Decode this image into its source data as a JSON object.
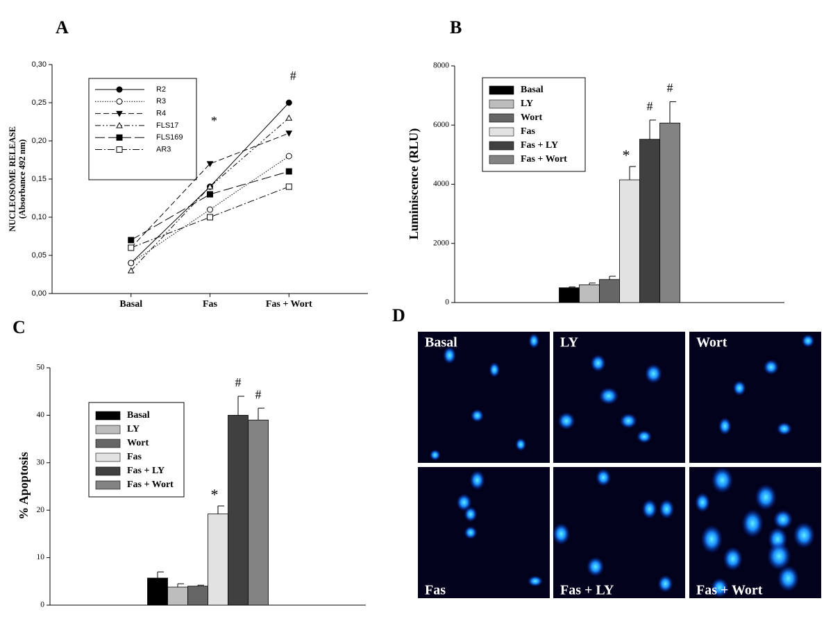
{
  "chart_data": [
    {
      "type": "line",
      "panel": "A",
      "ylabel": [
        "NUCLEOSOME RELEASE",
        "(Absorbance 492 nm)"
      ],
      "categories": [
        "Basal",
        "Fas",
        "Fas + Wort"
      ],
      "annotations": [
        null,
        "*",
        "#"
      ],
      "ylim": [
        0,
        0.3
      ],
      "yticks": [
        {
          "value": 0,
          "label": "0,00"
        },
        {
          "value": 0.05,
          "label": "0,05"
        },
        {
          "value": 0.1,
          "label": "0,10"
        },
        {
          "value": 0.15,
          "label": "0,15"
        },
        {
          "value": 0.2,
          "label": "0,20"
        },
        {
          "value": 0.25,
          "label": "0,25"
        },
        {
          "value": 0.3,
          "label": "0,30"
        }
      ],
      "series": [
        {
          "name": "R2",
          "color": "#000000",
          "dash": "solid",
          "marker": "circle",
          "filled": true,
          "values": [
            0.04,
            0.14,
            0.25
          ]
        },
        {
          "name": "R3",
          "color": "#000000",
          "dash": "dotted",
          "marker": "circle",
          "filled": false,
          "values": [
            0.04,
            0.11,
            0.18
          ]
        },
        {
          "name": "R4",
          "color": "#000000",
          "dash": "dashed",
          "marker": "triangle-down",
          "filled": true,
          "values": [
            0.06,
            0.17,
            0.21
          ]
        },
        {
          "name": "FLS17",
          "color": "#000000",
          "dash": "dash-dot-dot",
          "marker": "triangle-up",
          "filled": false,
          "values": [
            0.03,
            0.14,
            0.23
          ]
        },
        {
          "name": "FLS169",
          "color": "#000000",
          "dash": "long-dash",
          "marker": "square",
          "filled": true,
          "values": [
            0.07,
            0.13,
            0.16
          ]
        },
        {
          "name": "AR3",
          "color": "#000000",
          "dash": "dash-dot",
          "marker": "square",
          "filled": false,
          "values": [
            0.06,
            0.1,
            0.14
          ]
        }
      ]
    },
    {
      "type": "bar",
      "panel": "B",
      "ylabel": "Luminiscence (RLU)",
      "categories": [
        null
      ],
      "ylim": [
        0,
        8000
      ],
      "yticks": [
        0,
        2000,
        4000,
        6000,
        8000
      ],
      "series": [
        {
          "name": "Basal",
          "color": "#000000",
          "values": [
            500
          ],
          "errors": [
            30
          ]
        },
        {
          "name": "LY",
          "color": "#bdbdbd",
          "values": [
            600
          ],
          "errors": [
            60
          ]
        },
        {
          "name": "Wort",
          "color": "#666666",
          "values": [
            780
          ],
          "errors": [
            110
          ]
        },
        {
          "name": "Fas",
          "color": "#e2e2e2",
          "values": [
            4150
          ],
          "errors": [
            450
          ],
          "annotation": "*"
        },
        {
          "name": "Fas + LY",
          "color": "#404040",
          "values": [
            5520
          ],
          "errors": [
            650
          ],
          "annotation": "#"
        },
        {
          "name": "Fas + Wort",
          "color": "#838383",
          "values": [
            6070
          ],
          "errors": [
            720
          ],
          "annotation": "#"
        }
      ]
    },
    {
      "type": "bar",
      "panel": "C",
      "ylabel": "% Apoptosis",
      "categories": [
        null
      ],
      "ylim": [
        0,
        50
      ],
      "yticks": [
        0,
        10,
        20,
        30,
        40,
        50
      ],
      "series": [
        {
          "name": "Basal",
          "color": "#000000",
          "values": [
            5.7
          ],
          "errors": [
            1.3
          ]
        },
        {
          "name": "LY",
          "color": "#bdbdbd",
          "values": [
            3.8
          ],
          "errors": [
            0.7
          ]
        },
        {
          "name": "Wort",
          "color": "#666666",
          "values": [
            4.0
          ],
          "errors": [
            0.2
          ]
        },
        {
          "name": "Fas",
          "color": "#e2e2e2",
          "values": [
            19.2
          ],
          "errors": [
            1.7
          ],
          "annotation": "*"
        },
        {
          "name": "Fas + LY",
          "color": "#404040",
          "values": [
            40
          ],
          "errors": [
            4
          ],
          "annotation": "#"
        },
        {
          "name": "Fas + Wort",
          "color": "#838383",
          "values": [
            39
          ],
          "errors": [
            2.5
          ],
          "annotation": "#"
        }
      ]
    }
  ],
  "panel_d": {
    "panel": "D",
    "images": [
      {
        "label": "Basal"
      },
      {
        "label": "LY"
      },
      {
        "label": "Wort"
      },
      {
        "label": "Fas"
      },
      {
        "label": "Fas + LY"
      },
      {
        "label": "Fas + Wort"
      }
    ]
  }
}
